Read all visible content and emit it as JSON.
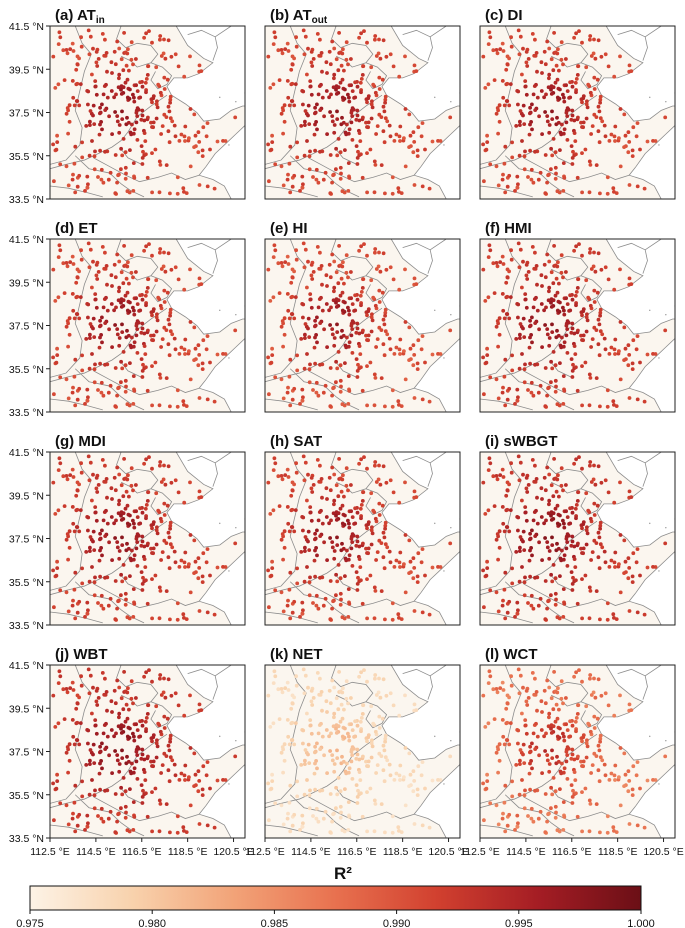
{
  "figure": {
    "colorbar_label": "R²",
    "colorbar_ticks": [
      "0.975",
      "0.980",
      "0.985",
      "0.990",
      "0.995",
      "1.000"
    ],
    "colorbar_range": [
      0.975,
      1.0
    ],
    "colormap": [
      "#fdf3e6",
      "#f8d2ad",
      "#f2a378",
      "#e8714f",
      "#d1402f",
      "#a41d24",
      "#6b0f16"
    ],
    "land_color": "#fbf6ef",
    "sea_color": "#ffffff",
    "border_color": "#8c8c8c"
  },
  "chart_data": [
    {
      "type": "scatter",
      "panel": "a",
      "prefix": "(a) ",
      "title": "AT",
      "subscript": "in",
      "mean_r2": 0.9935,
      "spread": 0.0055
    },
    {
      "type": "scatter",
      "panel": "b",
      "prefix": "(b) ",
      "title": "AT",
      "subscript": "out",
      "mean_r2": 0.9935,
      "spread": 0.0055
    },
    {
      "type": "scatter",
      "panel": "c",
      "prefix": "(c) ",
      "title": "DI",
      "subscript": "",
      "mean_r2": 0.9935,
      "spread": 0.0055
    },
    {
      "type": "scatter",
      "panel": "d",
      "prefix": "(d) ",
      "title": "ET",
      "subscript": "",
      "mean_r2": 0.9935,
      "spread": 0.0055
    },
    {
      "type": "scatter",
      "panel": "e",
      "prefix": "(e) ",
      "title": "HI",
      "subscript": "",
      "mean_r2": 0.993,
      "spread": 0.006
    },
    {
      "type": "scatter",
      "panel": "f",
      "prefix": "(f) ",
      "title": "HMI",
      "subscript": "",
      "mean_r2": 0.994,
      "spread": 0.005
    },
    {
      "type": "scatter",
      "panel": "g",
      "prefix": "(g) ",
      "title": "MDI",
      "subscript": "",
      "mean_r2": 0.994,
      "spread": 0.005
    },
    {
      "type": "scatter",
      "panel": "h",
      "prefix": "(h) ",
      "title": "SAT",
      "subscript": "",
      "mean_r2": 0.9935,
      "spread": 0.0055
    },
    {
      "type": "scatter",
      "panel": "i",
      "prefix": "(i) ",
      "title": "sWBGT",
      "subscript": "",
      "mean_r2": 0.9945,
      "spread": 0.005
    },
    {
      "type": "scatter",
      "panel": "j",
      "prefix": "(j) ",
      "title": "WBT",
      "subscript": "",
      "mean_r2": 0.9945,
      "spread": 0.005
    },
    {
      "type": "scatter",
      "panel": "k",
      "prefix": "(k) ",
      "title": "NET",
      "subscript": "",
      "mean_r2": 0.9795,
      "spread": 0.0035
    },
    {
      "type": "scatter",
      "panel": "l",
      "prefix": "(l) ",
      "title": "WCT",
      "subscript": "",
      "mean_r2": 0.99,
      "spread": 0.0065
    }
  ],
  "axes": {
    "y_ticks": [
      "41.5 °N",
      "39.5 °N",
      "37.5 °N",
      "35.5 °N",
      "33.5 °N"
    ],
    "y_values": [
      41.5,
      39.5,
      37.5,
      35.5,
      33.5
    ],
    "x_ticks": [
      "112.5 °E",
      "114.5 °E",
      "116.5 °E",
      "118.5 °E",
      "120.5 °E"
    ],
    "x_values": [
      112.5,
      114.5,
      116.5,
      118.5,
      120.5
    ],
    "lon_range": [
      112.5,
      121.0
    ],
    "lat_range": [
      33.5,
      41.5
    ]
  }
}
